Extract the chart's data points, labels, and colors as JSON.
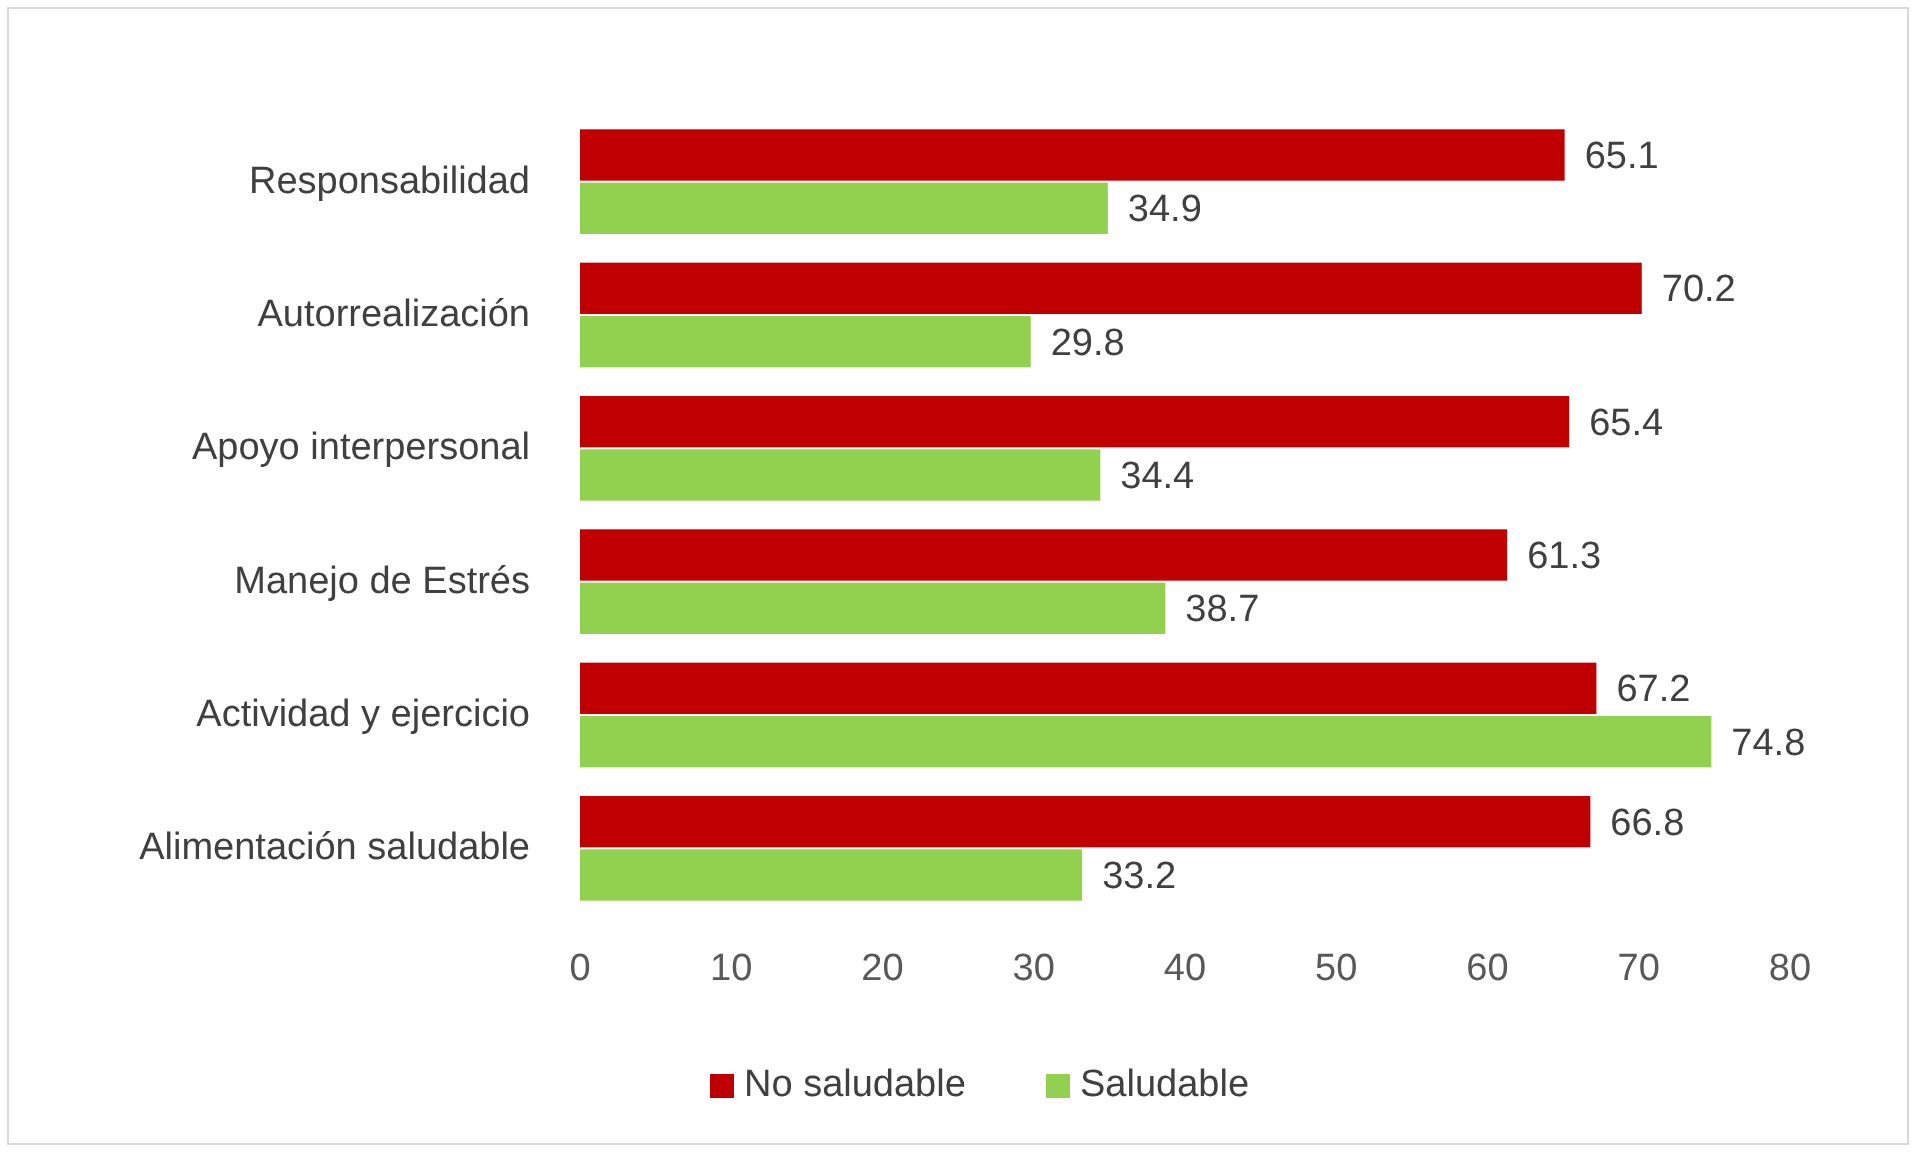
{
  "chart_data": {
    "type": "bar",
    "orientation": "horizontal",
    "categories": [
      "Responsabilidad",
      "Autorrealización",
      "Apoyo interpersonal",
      "Manejo de Estrés",
      "Actividad y ejercicio",
      "Alimentación saludable"
    ],
    "series": [
      {
        "name": "No saludable",
        "color": "#c00000",
        "values": [
          65.1,
          70.2,
          65.4,
          61.3,
          67.2,
          66.8
        ]
      },
      {
        "name": "Saludable",
        "color": "#92d050",
        "values": [
          34.9,
          29.8,
          34.4,
          38.7,
          74.8,
          33.2
        ]
      }
    ],
    "xlim": [
      0,
      80
    ],
    "xticks": [
      0,
      10,
      20,
      30,
      40,
      50,
      60,
      70,
      80
    ],
    "grid": false,
    "legend": "bottom",
    "data_labels": true
  }
}
